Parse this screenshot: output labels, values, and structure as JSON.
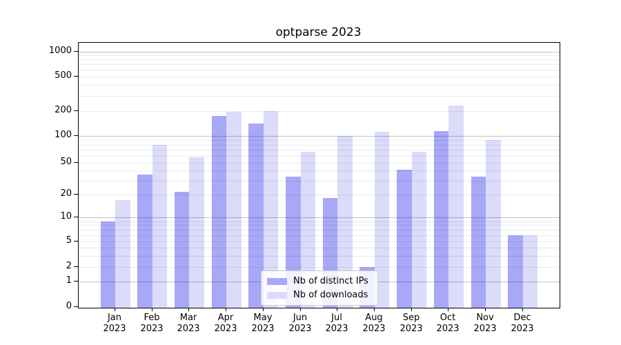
{
  "chart_data": {
    "type": "bar",
    "title": "optparse 2023",
    "categories": [
      "Jan",
      "Feb",
      "Mar",
      "Apr",
      "May",
      "Jun",
      "Jul",
      "Aug",
      "Sep",
      "Oct",
      "Nov",
      "Dec"
    ],
    "year": "2023",
    "series": [
      {
        "name": "Nb of distinct IPs",
        "color": "#a7a8f7",
        "values": [
          9,
          36,
          22,
          172,
          140,
          34,
          18,
          2,
          41,
          114,
          34,
          6
        ]
      },
      {
        "name": "Nb of downloads",
        "color": "#dbdcfa",
        "values": [
          17,
          79,
          58,
          195,
          200,
          67,
          100,
          112,
          67,
          230,
          90,
          6
        ]
      }
    ],
    "yscale": "symlog",
    "ylim": [
      0,
      1100
    ],
    "y_ticks": [
      0,
      1,
      2,
      5,
      10,
      20,
      50,
      100,
      200,
      500,
      1000
    ],
    "y_major_gridlines": [
      1,
      10,
      100,
      1000
    ],
    "y_minor_gridlines": [
      2,
      5,
      20,
      50,
      200,
      500,
      3,
      4,
      6,
      7,
      8,
      9,
      30,
      40,
      60,
      70,
      80,
      90,
      300,
      400,
      600,
      700,
      800,
      900
    ],
    "grid": true,
    "legend_position": "inside-lower-center",
    "colors": {
      "bar_distinct_ips": "#a7a8f7",
      "bar_downloads": "#dbdcfa",
      "grid_major": "#c6c6c6",
      "grid_minor": "#ececec",
      "axis": "#000000",
      "legend_border": "#cccccc"
    }
  }
}
